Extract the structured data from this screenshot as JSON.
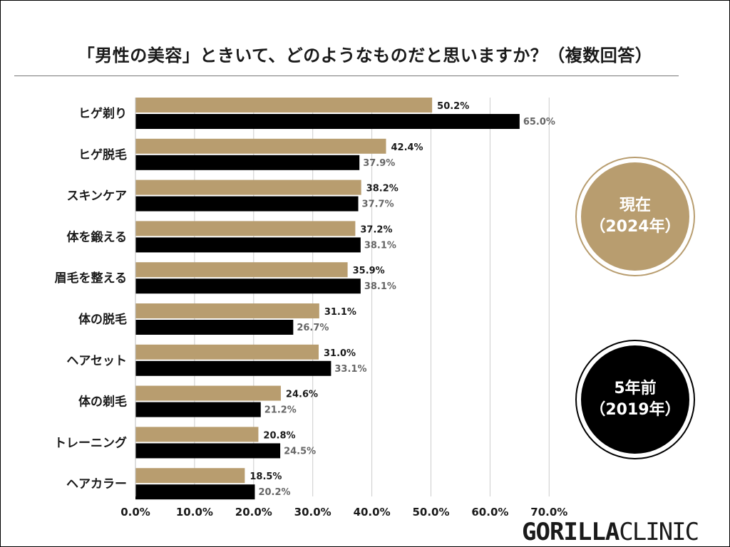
{
  "title": "「男性の美容」ときいて、どのようなものだと思いますか？（複数回答）",
  "colors": {
    "now": "#b89d6f",
    "past": "#000000",
    "past_label": "#666666",
    "now_label": "#1a1a1a",
    "grid": "#cccccc"
  },
  "badges": {
    "now": {
      "line1": "現在",
      "line2": "（2024年）"
    },
    "past": {
      "line1": "5年前",
      "line2": "（2019年）"
    }
  },
  "logo": {
    "bold": "GORILLA",
    "light": "CLINIC"
  },
  "chart_data": {
    "type": "bar",
    "orientation": "horizontal",
    "title": "「男性の美容」ときいて、どのようなものだと思いますか？（複数回答）",
    "categories": [
      "ヒゲ剃り",
      "ヒゲ脱毛",
      "スキンケア",
      "体を鍛える",
      "眉毛を整える",
      "体の脱毛",
      "ヘアセット",
      "体の剃毛",
      "トレーニング",
      "ヘアカラー"
    ],
    "series": [
      {
        "name": "現在（2024年）",
        "values": [
          50.2,
          42.4,
          38.2,
          37.2,
          35.9,
          31.1,
          31.0,
          24.6,
          20.8,
          18.5
        ],
        "labels": [
          "50.2%",
          "42.4%",
          "38.2%",
          "37.2%",
          "35.9%",
          "31.1%",
          "31.0%",
          "24.6%",
          "20.8%",
          "18.5%"
        ]
      },
      {
        "name": "5年前（2019年）",
        "values": [
          65.0,
          37.9,
          37.7,
          38.1,
          38.1,
          26.7,
          33.1,
          21.2,
          24.5,
          20.2
        ],
        "labels": [
          "65.0%",
          "37.9%",
          "37.7%",
          "38.1%",
          "38.1%",
          "26.7%",
          "33.1%",
          "21.2%",
          "24.5%",
          "20.2%"
        ]
      }
    ],
    "xlim": [
      0,
      70
    ],
    "xticks": [
      0,
      10,
      20,
      30,
      40,
      50,
      60,
      70
    ],
    "xtick_labels": [
      "0.0%",
      "10.0%",
      "20.0%",
      "30.0%",
      "40.0%",
      "50.0%",
      "60.0%",
      "70.0%"
    ],
    "grid": true,
    "legend": "right"
  }
}
